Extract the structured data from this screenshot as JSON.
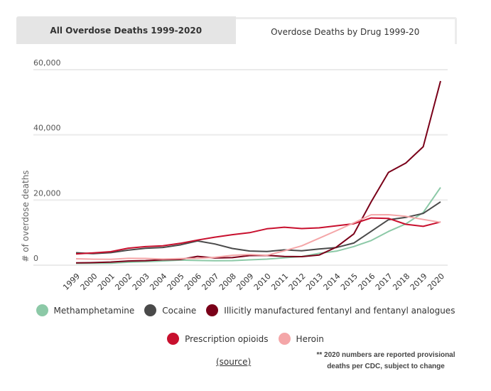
{
  "tabs": [
    {
      "label": "All Overdose Deaths 1999-2020",
      "active": false
    },
    {
      "label": "Overdose Deaths by Drug 1999-20",
      "active": true
    }
  ],
  "footer": {
    "source_label": "(source)",
    "note_line1": "** 2020 numbers are reported provisional",
    "note_line2": "deaths per CDC, subject to change"
  },
  "chart_data": {
    "type": "line",
    "title": "Overdose Deaths by Drug 1999-20",
    "xlabel": "",
    "ylabel": "# of overdose deaths",
    "ylim": [
      0,
      60000
    ],
    "yticks": [
      0,
      20000,
      40000,
      60000
    ],
    "ytick_labels": [
      "0",
      "20,000",
      "40,000",
      "60,000"
    ],
    "grid": true,
    "legend_position": "bottom",
    "x": [
      "1999",
      "2000",
      "2001",
      "2002",
      "2003",
      "2004",
      "2005",
      "2006",
      "2007",
      "2008",
      "2009",
      "2010",
      "2011",
      "2012",
      "2013",
      "2014",
      "2015",
      "2016",
      "2017",
      "2018",
      "2019",
      "2020"
    ],
    "series": [
      {
        "name": "Methamphetamine",
        "color": "#8cc9a7",
        "values": [
          547,
          578,
          604,
          888,
          1073,
          1287,
          1558,
          1430,
          1370,
          1388,
          1630,
          1854,
          2266,
          2635,
          3627,
          4298,
          5716,
          7542,
          10333,
          12676,
          16167,
          23837
        ]
      },
      {
        "name": "Cocaine",
        "color": "#4a4a4a",
        "values": [
          3822,
          3544,
          3833,
          4599,
          5199,
          5443,
          6208,
          7448,
          6512,
          5129,
          4350,
          4183,
          4681,
          4404,
          4944,
          5415,
          6784,
          10375,
          13942,
          14666,
          15883,
          19447
        ]
      },
      {
        "name": "Illicitly manufactured fentanyl and fentanyl analogues",
        "color": "#7a0019",
        "values": [
          730,
          782,
          957,
          1295,
          1400,
          1664,
          1742,
          2707,
          2213,
          2306,
          2946,
          3007,
          2666,
          2628,
          3105,
          5544,
          9580,
          19413,
          28466,
          31335,
          36359,
          56516
        ]
      },
      {
        "name": "Prescription opioids",
        "color": "#c8102e",
        "values": [
          3442,
          3785,
          4140,
          5221,
          5690,
          5939,
          6702,
          7697,
          8592,
          9365,
          9961,
          11181,
          11657,
          11247,
          11459,
          12084,
          12722,
          14482,
          14348,
          12552,
          11904,
          13257
        ]
      },
      {
        "name": "Heroin",
        "color": "#f4a6a8",
        "values": [
          1960,
          1842,
          1779,
          2089,
          2080,
          1878,
          2009,
          2088,
          2399,
          3041,
          3278,
          3036,
          4397,
          5925,
          8257,
          10574,
          12989,
          15469,
          15482,
          14996,
          14019,
          13165
        ]
      }
    ]
  }
}
